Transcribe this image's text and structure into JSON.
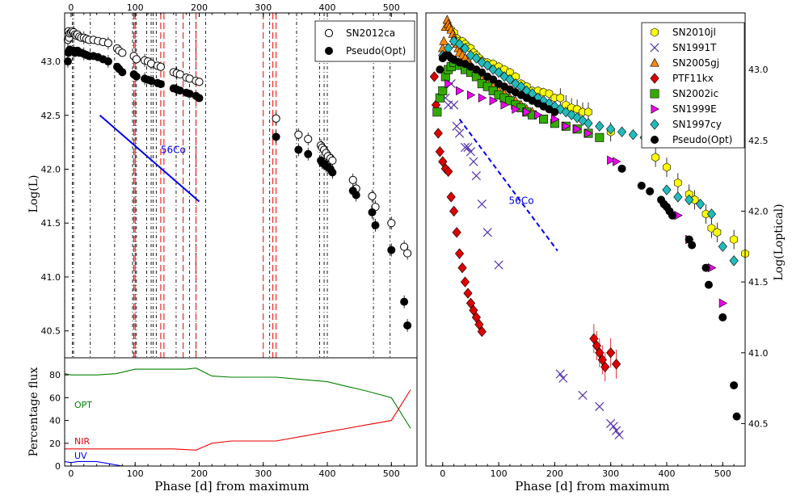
{
  "chart_data": [
    {
      "type": "scatter",
      "panel": "left-top",
      "ylabel": "Log(L)",
      "xlim": [
        -10,
        540
      ],
      "ylim": [
        40.25,
        43.45
      ],
      "x_ticks": [
        0,
        100,
        200,
        300,
        400,
        500
      ],
      "y_ticks": [
        40.5,
        41.0,
        41.5,
        42.0,
        42.5,
        43.0
      ],
      "legend_position": "top-right",
      "series": [
        {
          "name": "SN2012ca",
          "marker": "open-circle",
          "color": "#000000",
          "x": [
            -5,
            -4,
            -3,
            -2,
            0,
            2,
            4,
            6,
            8,
            10,
            13,
            16,
            20,
            24,
            28,
            35,
            42,
            50,
            58,
            72,
            75,
            80,
            98,
            102,
            115,
            120,
            125,
            135,
            140,
            160,
            165,
            170,
            180,
            185,
            195,
            200,
            320,
            355,
            370,
            390,
            392,
            395,
            398,
            401,
            405,
            408,
            440,
            445,
            470,
            475,
            500,
            520,
            525
          ],
          "y": [
            43.2,
            43.28,
            43.22,
            43.26,
            43.27,
            43.28,
            43.27,
            43.25,
            43.24,
            43.25,
            43.23,
            43.22,
            43.22,
            43.21,
            43.2,
            43.2,
            43.19,
            43.18,
            43.17,
            43.12,
            43.1,
            43.08,
            43.05,
            43.02,
            43.01,
            43.0,
            42.98,
            42.96,
            42.95,
            42.9,
            42.89,
            42.88,
            42.85,
            42.84,
            42.82,
            42.81,
            42.47,
            42.32,
            42.28,
            42.22,
            42.2,
            42.18,
            42.15,
            42.12,
            42.1,
            42.08,
            41.9,
            41.82,
            41.75,
            41.65,
            41.5,
            41.28,
            41.22
          ]
        },
        {
          "name": "Pseudo(Opt)",
          "marker": "filled-circle",
          "color": "#000000",
          "x": [
            -5,
            -4,
            -3,
            -2,
            0,
            2,
            4,
            6,
            8,
            10,
            13,
            16,
            20,
            24,
            28,
            35,
            42,
            50,
            58,
            72,
            75,
            80,
            98,
            102,
            115,
            120,
            125,
            135,
            140,
            160,
            165,
            170,
            180,
            185,
            195,
            200,
            320,
            355,
            370,
            390,
            392,
            395,
            398,
            401,
            405,
            408,
            440,
            445,
            470,
            475,
            500,
            520,
            525
          ],
          "y": [
            43.0,
            43.08,
            43.1,
            43.11,
            43.1,
            43.1,
            43.1,
            43.08,
            43.09,
            43.1,
            43.08,
            43.08,
            43.07,
            43.06,
            43.05,
            43.05,
            43.04,
            43.02,
            43.0,
            42.95,
            42.93,
            42.9,
            42.88,
            42.86,
            42.84,
            42.83,
            42.82,
            42.8,
            42.79,
            42.75,
            42.74,
            42.73,
            42.71,
            42.7,
            42.68,
            42.66,
            42.3,
            42.18,
            42.14,
            42.08,
            42.06,
            42.05,
            42.03,
            42.02,
            42.0,
            41.97,
            41.8,
            41.76,
            41.6,
            41.48,
            41.25,
            40.77,
            40.55
          ]
        }
      ],
      "co56_line": {
        "label": "56Co",
        "x": [
          45,
          200
        ],
        "y": [
          42.5,
          41.7
        ],
        "color": "#0000ee"
      },
      "vertical_lines_black": [
        2,
        4,
        30,
        68,
        96,
        100,
        102,
        118,
        125,
        128,
        133,
        164,
        185,
        195,
        210,
        310,
        352,
        388,
        395,
        400,
        472,
        498
      ],
      "vertical_lines_red": [
        98,
        100,
        140,
        145,
        175,
        195,
        300,
        315,
        320
      ]
    },
    {
      "type": "line",
      "panel": "left-bottom",
      "ylabel": "Percentage flux",
      "xlabel": "Phase [d] from maximum",
      "xlim": [
        -10,
        540
      ],
      "ylim": [
        0,
        95
      ],
      "y_ticks": [
        0,
        20,
        40,
        60,
        80
      ],
      "series": [
        {
          "name": "OPT",
          "color": "#008000",
          "x": [
            -10,
            0,
            10,
            30,
            40,
            70,
            100,
            120,
            140,
            160,
            180,
            195,
            220,
            250,
            300,
            320,
            360,
            400,
            430,
            460,
            500,
            530
          ],
          "y": [
            81,
            80,
            80,
            80,
            80,
            81,
            85,
            85,
            85,
            85,
            85,
            86,
            79,
            78,
            78,
            78,
            76,
            74,
            70,
            66,
            60,
            33
          ]
        },
        {
          "name": "NIR",
          "color": "#ee0000",
          "x": [
            -10,
            0,
            40,
            70,
            100,
            140,
            160,
            195,
            220,
            250,
            300,
            320,
            360,
            400,
            430,
            460,
            500,
            530
          ],
          "y": [
            15,
            15,
            15,
            15,
            15,
            15,
            15,
            14,
            20,
            22,
            22,
            22,
            26,
            30,
            33,
            36,
            40,
            67
          ]
        },
        {
          "name": "UV",
          "color": "#0000ee",
          "x": [
            -10,
            0,
            10,
            20,
            30,
            40,
            60,
            80,
            100,
            200,
            300,
            400,
            500,
            530
          ],
          "y": [
            4,
            3,
            4,
            4,
            4,
            4,
            2,
            0,
            0,
            0,
            0,
            0,
            0,
            0
          ]
        }
      ]
    },
    {
      "type": "scatter",
      "panel": "right",
      "ylabel": "Log(Loptical)",
      "xlabel": "Phase [d] from maximum",
      "xlim": [
        -30,
        540
      ],
      "ylim": [
        40.2,
        43.4
      ],
      "x_ticks": [
        0,
        100,
        200,
        300,
        400,
        500
      ],
      "y_ticks": [
        40.5,
        41.0,
        41.5,
        42.0,
        42.5,
        43.0
      ],
      "legend_position": "top-right",
      "series": [
        {
          "name": "SN2010jl",
          "marker": "hexagon",
          "color": "#ffff00",
          "x": [
            5,
            10,
            15,
            20,
            25,
            30,
            35,
            40,
            45,
            50,
            55,
            60,
            65,
            70,
            75,
            80,
            90,
            100,
            110,
            120,
            130,
            140,
            150,
            160,
            170,
            180,
            190,
            200,
            210,
            220,
            230,
            240,
            250,
            260,
            300,
            380,
            400,
            420,
            440,
            450,
            470,
            480,
            490,
            520,
            540
          ],
          "y": [
            43.1,
            43.3,
            43.28,
            43.26,
            43.22,
            43.2,
            43.2,
            43.18,
            43.16,
            43.15,
            43.12,
            43.1,
            43.08,
            43.06,
            43.05,
            43.05,
            43.04,
            43.02,
            43.0,
            42.98,
            42.95,
            42.9,
            42.88,
            42.85,
            42.85,
            42.84,
            42.83,
            42.8,
            42.8,
            42.75,
            42.73,
            42.72,
            42.7,
            42.7,
            42.56,
            42.38,
            42.31,
            42.2,
            42.12,
            42.08,
            41.98,
            41.88,
            41.85,
            41.8,
            41.7
          ]
        },
        {
          "name": "SN1991T",
          "marker": "x",
          "color": "#5533aa",
          "x": [
            0,
            5,
            10,
            15,
            20,
            25,
            30,
            40,
            45,
            50,
            55,
            60,
            70,
            80,
            100,
            210,
            215,
            250,
            280,
            300,
            305,
            310,
            315
          ],
          "y": [
            42.85,
            42.8,
            42.75,
            42.9,
            42.75,
            42.6,
            42.55,
            42.45,
            42.45,
            42.42,
            42.35,
            42.25,
            42.05,
            41.85,
            41.62,
            40.85,
            40.82,
            40.7,
            40.62,
            40.5,
            40.48,
            40.45,
            40.42
          ]
        },
        {
          "name": "SN2005gj",
          "marker": "triangle-up",
          "color": "#ff8800",
          "x": [
            0,
            2,
            5,
            8,
            10,
            12,
            15,
            18,
            20,
            22,
            25,
            28,
            30,
            35,
            40,
            45,
            50,
            55,
            60,
            65,
            70,
            80,
            90,
            100,
            110,
            120,
            130,
            140,
            150,
            160
          ],
          "y": [
            43.15,
            43.2,
            43.3,
            43.35,
            43.32,
            43.3,
            43.28,
            43.25,
            43.22,
            43.2,
            43.18,
            43.15,
            43.12,
            43.1,
            43.08,
            43.05,
            43.03,
            43.0,
            42.98,
            42.95,
            42.93,
            42.9,
            42.88,
            42.85,
            42.83,
            42.8,
            42.78,
            42.75,
            42.72,
            42.7
          ]
        },
        {
          "name": "PTF11kx",
          "marker": "diamond",
          "color": "#dd0000",
          "x": [
            -15,
            -12,
            -8,
            -5,
            0,
            5,
            10,
            15,
            20,
            25,
            30,
            35,
            40,
            45,
            50,
            55,
            60,
            65,
            70,
            270,
            275,
            280,
            285,
            290,
            300,
            310
          ],
          "y": [
            42.95,
            42.75,
            42.55,
            42.42,
            42.35,
            42.3,
            42.28,
            42.1,
            42.0,
            41.85,
            41.7,
            41.6,
            41.5,
            41.42,
            41.35,
            41.3,
            41.25,
            41.2,
            41.15,
            41.1,
            41.05,
            41.0,
            40.95,
            40.9,
            41.0,
            40.92
          ]
        },
        {
          "name": "SN2002ic",
          "marker": "square",
          "color": "#33aa00",
          "x": [
            -10,
            -5,
            0,
            5,
            10,
            15,
            20,
            30,
            40,
            50,
            60,
            70,
            80,
            90,
            100,
            110,
            120,
            130,
            140,
            150,
            160,
            180,
            200,
            220,
            240,
            260,
            280
          ],
          "y": [
            42.7,
            42.8,
            42.85,
            42.95,
            43.0,
            43.02,
            43.05,
            43.03,
            43.0,
            42.98,
            42.95,
            42.9,
            42.88,
            42.85,
            42.82,
            42.8,
            42.78,
            42.75,
            42.73,
            42.7,
            42.68,
            42.65,
            42.62,
            42.6,
            42.58,
            42.55,
            42.52
          ]
        },
        {
          "name": "SN1999E",
          "marker": "triangle-right",
          "color": "#ee00ee",
          "x": [
            10,
            30,
            50,
            70,
            90,
            110,
            130,
            150,
            170,
            200,
            220,
            240,
            260,
            300,
            310,
            420,
            440,
            480,
            500
          ],
          "y": [
            42.9,
            42.85,
            42.82,
            42.8,
            42.78,
            42.75,
            42.72,
            42.7,
            42.68,
            42.65,
            42.6,
            42.58,
            42.55,
            42.36,
            42.35,
            41.97,
            41.8,
            41.6,
            41.35
          ]
        },
        {
          "name": "SN1997cy",
          "marker": "diamond",
          "color": "#22bbbb",
          "x": [
            0,
            10,
            20,
            30,
            40,
            50,
            60,
            70,
            80,
            90,
            100,
            110,
            120,
            130,
            140,
            150,
            160,
            170,
            180,
            190,
            200,
            210,
            220,
            230,
            240,
            250,
            260,
            280,
            300,
            320,
            340,
            360,
            380,
            400,
            420,
            440,
            460,
            480,
            500,
            520
          ],
          "y": [
            43.1,
            43.15,
            43.2,
            43.18,
            43.15,
            43.1,
            43.08,
            43.05,
            43.03,
            43.0,
            42.98,
            42.95,
            42.93,
            42.9,
            42.88,
            42.85,
            42.83,
            42.8,
            42.78,
            42.76,
            42.74,
            42.72,
            42.7,
            42.68,
            42.66,
            42.64,
            42.62,
            42.6,
            42.58,
            42.56,
            42.54,
            42.52,
            42.5,
            42.15,
            42.1,
            42.08,
            42.05,
            41.98,
            41.75,
            41.65
          ]
        },
        {
          "name": "Pseudo(Opt)",
          "marker": "filled-circle",
          "color": "#000000",
          "x": [
            -5,
            0,
            5,
            10,
            15,
            20,
            30,
            40,
            50,
            60,
            70,
            80,
            90,
            100,
            110,
            120,
            130,
            140,
            150,
            160,
            170,
            180,
            190,
            200,
            320,
            355,
            370,
            390,
            395,
            400,
            405,
            410,
            440,
            445,
            470,
            475,
            500,
            520,
            525
          ],
          "y": [
            43.0,
            43.08,
            43.1,
            43.1,
            43.08,
            43.07,
            43.05,
            43.04,
            43.02,
            43.0,
            42.98,
            42.95,
            42.93,
            42.9,
            42.88,
            42.86,
            42.84,
            42.82,
            42.8,
            42.78,
            42.76,
            42.74,
            42.72,
            42.7,
            42.3,
            42.18,
            42.14,
            42.08,
            42.05,
            42.03,
            42.0,
            41.97,
            41.8,
            41.76,
            41.6,
            41.48,
            41.25,
            40.77,
            40.55
          ]
        }
      ],
      "co56_line": {
        "label": "56Co",
        "x": [
          30,
          205
        ],
        "y": [
          42.65,
          41.72
        ],
        "color": "#0000ee",
        "style": "dashed"
      }
    }
  ],
  "text": {
    "left_xlabel": "Phase [d] from maximum",
    "right_xlabel": "Phase [d] from maximum",
    "left_top_ylabel": "Log(L)",
    "left_bottom_ylabel": "Percentage flux",
    "right_ylabel": "Log(Loptical)",
    "co_label_left": "56Co",
    "co_label_right": "56Co",
    "opt_label": "OPT",
    "nir_label": "NIR",
    "uv_label": "UV"
  }
}
